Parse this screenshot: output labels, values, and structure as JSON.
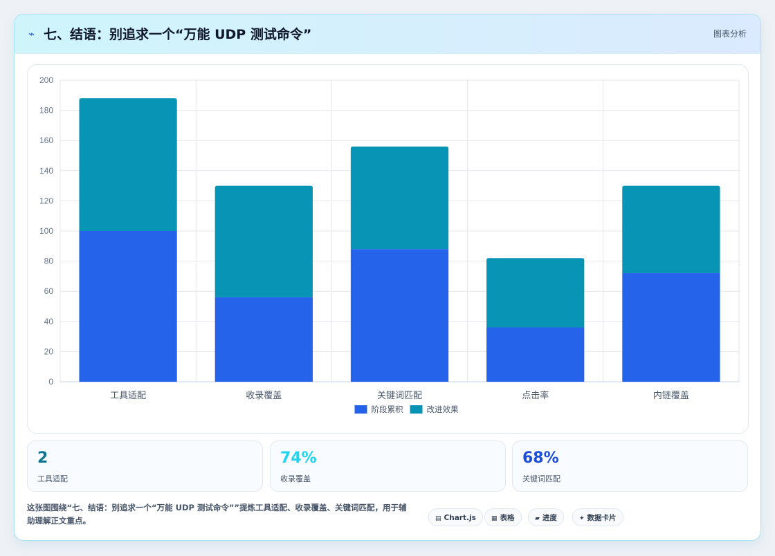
{
  "header": {
    "icon": "signal-icon",
    "title": "七、结语：别追求一个“万能 UDP 测试命令”",
    "tag": "图表分析"
  },
  "chart_data": {
    "type": "bar",
    "stacked": true,
    "categories": [
      "工具适配",
      "收录覆盖",
      "关键词匹配",
      "点击率",
      "内链覆盖"
    ],
    "series": [
      {
        "name": "阶段累积",
        "color": "#2563eb",
        "values": [
          100,
          56,
          88,
          36,
          72
        ]
      },
      {
        "name": "改进效果",
        "color": "#0894b4",
        "values": [
          88,
          74,
          68,
          46,
          58
        ]
      }
    ],
    "ylim": [
      0,
      200
    ],
    "yticks": [
      0,
      20,
      40,
      60,
      80,
      100,
      120,
      140,
      160,
      180,
      200
    ],
    "grid": true,
    "legend": "bottom"
  },
  "stats": [
    {
      "value": "2",
      "label": "工具适配",
      "color": "#0e7490"
    },
    {
      "value": "74%",
      "label": "收录覆盖",
      "color": "#22d3ee"
    },
    {
      "value": "68%",
      "label": "关键词匹配",
      "color": "#1d4ed8"
    }
  ],
  "footer": {
    "text": "这张图围绕“七、结语：别追求一个“万能 UDP 测试命令””提炼工具适配、收录覆盖、关键词匹配，用于辅助理解正文重点。",
    "chips": [
      {
        "icon": "chart-icon",
        "label": "Chart.js"
      },
      {
        "icon": "table-icon",
        "label": "表格"
      },
      {
        "icon": "progress-icon",
        "label": "进度"
      },
      {
        "icon": "data-card-icon",
        "label": "数据卡片"
      }
    ]
  }
}
